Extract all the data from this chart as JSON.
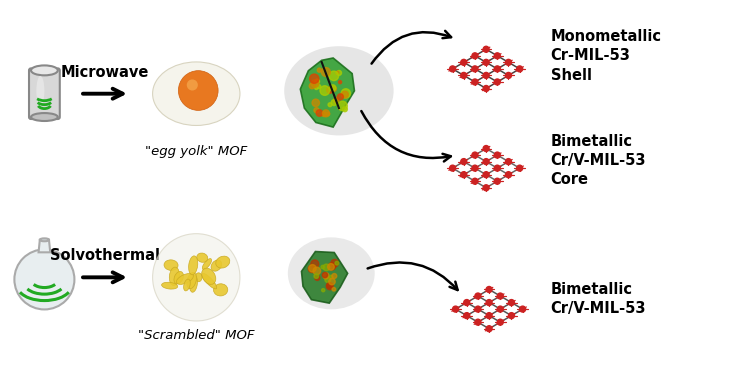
{
  "bg_color": "#ffffff",
  "top_label": "Microwave",
  "bottom_label": "Solvothermal",
  "top_caption": "\"egg yolk\" MOF",
  "bottom_caption": "\"Scrambled\" MOF",
  "label1": "Monometallic\nCr-MIL-53\nShell",
  "label2": "Bimetallic\nCr/V-MIL-53\nCore",
  "label3": "Bimetallic\nCr/V-MIL-53",
  "text_color": "#000000",
  "label_fontsize": 10.5,
  "caption_fontsize": 9.5
}
